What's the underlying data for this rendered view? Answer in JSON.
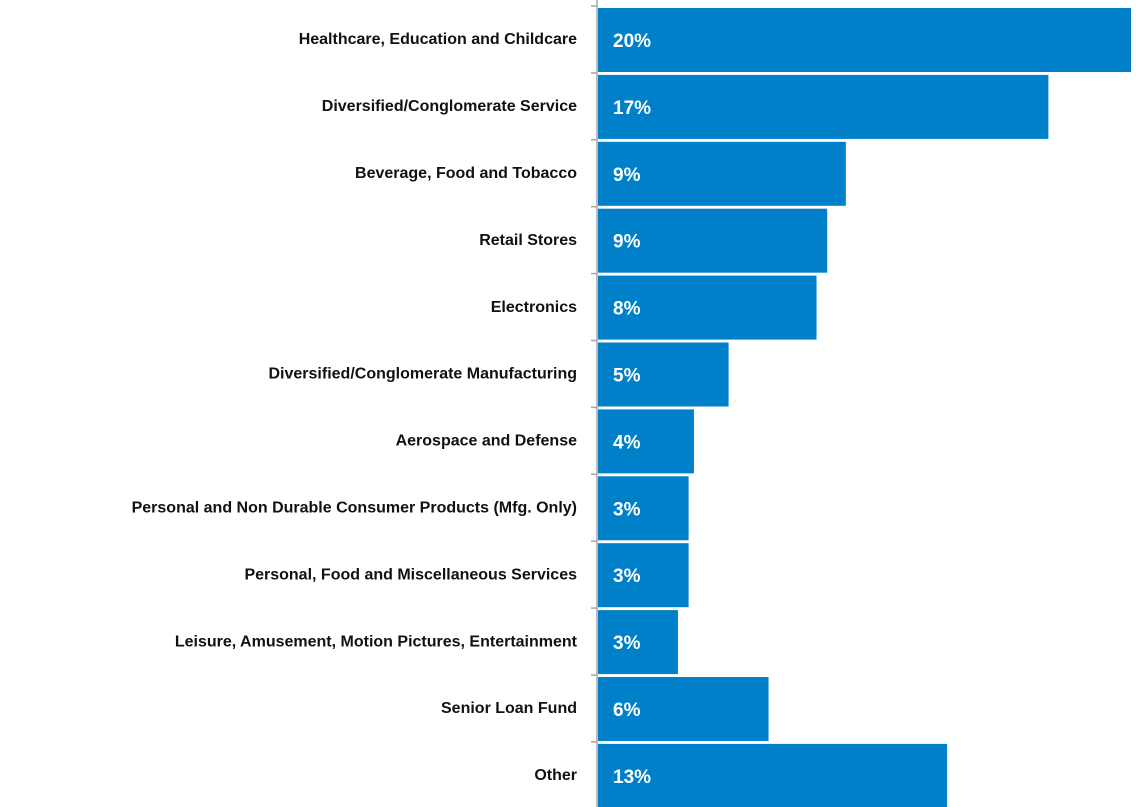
{
  "chart_data": {
    "type": "barh",
    "categories": [
      "Healthcare, Education and Childcare",
      "Diversified/Conglomerate Service",
      "Beverage, Food and Tobacco",
      "Retail Stores",
      "Electronics",
      "Diversified/Conglomerate Manufacturing",
      "Aerospace and Defense",
      "Personal and Non Durable Consumer Products (Mfg. Only)",
      "Personal, Food and Miscellaneous Services",
      "Leisure, Amusement, Motion Pictures, Entertainment",
      "Senior Loan Fund",
      "Other"
    ],
    "values": [
      20.0,
      16.9,
      9.3,
      8.6,
      8.2,
      4.9,
      3.6,
      3.4,
      3.4,
      3.0,
      6.4,
      13.1
    ],
    "value_labels": [
      "20%",
      "17%",
      "9%",
      "9%",
      "8%",
      "5%",
      "4%",
      "3%",
      "3%",
      "3%",
      "6%",
      "13%"
    ],
    "color": "#0080c8"
  }
}
